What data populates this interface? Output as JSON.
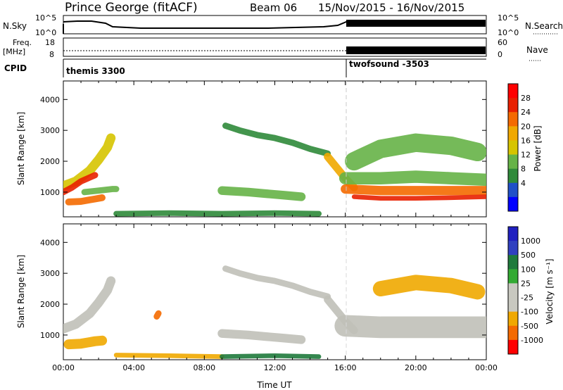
{
  "header": {
    "station": "Prince George (fitACF)",
    "beam": "Beam 06",
    "date_range": "15/Nov/2015 - 16/Nov/2015"
  },
  "summary_panels": {
    "nsky": {
      "label": "N.Sky",
      "ticks_left": [
        "10^5",
        "10^0"
      ],
      "ticks_right": [
        "10^5",
        "10^0"
      ],
      "right_label": "N.Search"
    },
    "freq": {
      "label_line1": "Freq.",
      "label_line2": "[MHz]",
      "ticks_left": [
        "18",
        "8"
      ],
      "ticks_right": [
        "60",
        "0"
      ],
      "right_label": "Nave"
    },
    "cpid": {
      "label": "CPID",
      "segments": [
        {
          "name": "themis 3300",
          "start_hour": 0
        },
        {
          "name": "twofsound -3503",
          "start_hour": 16
        }
      ]
    }
  },
  "colors": {
    "power_scale": [
      "#0000ff",
      "#2050c8",
      "#2f8a3a",
      "#66b347",
      "#d6c400",
      "#f0a800",
      "#f46a00",
      "#e82000",
      "#ff0000"
    ],
    "velocity_scale": [
      "#ff0000",
      "#f46a00",
      "#f0a800",
      "#c8c8c0",
      "#c8c8c0",
      "#33aa33",
      "#1f7a3c",
      "#3040c0",
      "#2020c0"
    ],
    "ground_scatter": "#c0c0b8"
  },
  "chart_data": [
    {
      "type": "heatmap",
      "title": "Power",
      "xlabel": "",
      "ylabel": "Slant Range [km]",
      "xlim": [
        0,
        24
      ],
      "ylim": [
        200,
        4600
      ],
      "yticks": [
        "4000",
        "3000",
        "2000",
        "1000"
      ],
      "colorbar": {
        "label": "Power [dB]",
        "ticks": [
          "28",
          "24",
          "20",
          "16",
          "12",
          "8",
          "4"
        ]
      },
      "bands": [
        {
          "x": [
            0.0,
            0.7,
            1.5,
            2.0,
            2.5,
            2.7
          ],
          "y": [
            1200,
            1350,
            1700,
            2050,
            2450,
            2750
          ],
          "width_km": 300,
          "value": 15
        },
        {
          "x": [
            0.0,
            0.5,
            1.0,
            1.8
          ],
          "y": [
            1000,
            1150,
            1350,
            1550
          ],
          "width_km": 200,
          "value": 26
        },
        {
          "x": [
            0.3,
            1.0,
            1.8,
            2.2
          ],
          "y": [
            680,
            700,
            780,
            820
          ],
          "width_km": 220,
          "value": 24
        },
        {
          "x": [
            1.2,
            2.0,
            2.8,
            3.0
          ],
          "y": [
            1000,
            1050,
            1100,
            1100
          ],
          "width_km": 200,
          "value": 12
        },
        {
          "x": [
            3.0,
            6.0,
            9.0,
            12.0,
            14.5
          ],
          "y": [
            300,
            320,
            300,
            320,
            300
          ],
          "width_km": 180,
          "value": 10
        },
        {
          "x": [
            9.2,
            10.0,
            11.0,
            12.0,
            13.0,
            14.0,
            15.0
          ],
          "y": [
            3150,
            3000,
            2850,
            2750,
            2600,
            2400,
            2250
          ],
          "width_km": 200,
          "value": 8
        },
        {
          "x": [
            15.0,
            15.5,
            16.0,
            16.5
          ],
          "y": [
            2150,
            1800,
            1450,
            1150
          ],
          "width_km": 250,
          "value": 20
        },
        {
          "x": [
            9.0,
            10.5,
            11.5,
            12.5,
            13.5
          ],
          "y": [
            1050,
            1000,
            950,
            900,
            850
          ],
          "width_km": 280,
          "value": 12
        },
        {
          "x": [
            16.0,
            18.0,
            20.0,
            22.0,
            24.0
          ],
          "y": [
            1450,
            1450,
            1500,
            1450,
            1400
          ],
          "width_km": 400,
          "value": 13
        },
        {
          "x": [
            16.0,
            18.0,
            20.0,
            22.0,
            24.0
          ],
          "y": [
            1100,
            1050,
            1050,
            1050,
            1050
          ],
          "width_km": 300,
          "value": 22
        },
        {
          "x": [
            16.5,
            18.0,
            20.0,
            22.0,
            24.0
          ],
          "y": [
            850,
            800,
            800,
            820,
            850
          ],
          "width_km": 150,
          "value": 28
        },
        {
          "x": [
            16.5,
            18.0,
            20.0,
            22.0,
            23.5
          ],
          "y": [
            2000,
            2400,
            2600,
            2500,
            2300
          ],
          "width_km": 600,
          "value": 11
        }
      ]
    },
    {
      "type": "heatmap",
      "title": "Velocity",
      "xlabel": "Time UT",
      "ylabel": "Slant Range [km]",
      "xlim": [
        0,
        24
      ],
      "ylim": [
        200,
        4600
      ],
      "xticks": [
        "00:00",
        "04:00",
        "08:00",
        "12:00",
        "16:00",
        "20:00",
        "00:00"
      ],
      "yticks": [
        "4000",
        "3000",
        "2000",
        "1000"
      ],
      "colorbar": {
        "label": "Velocity [m s⁻¹]",
        "ticks": [
          "1000",
          "500",
          "100",
          "25",
          "-25",
          "-100",
          "-500",
          "-1000"
        ]
      },
      "bands": [
        {
          "x": [
            0.0,
            0.7,
            1.5,
            2.0,
            2.5,
            2.7
          ],
          "y": [
            1200,
            1350,
            1700,
            2050,
            2450,
            2750
          ],
          "width_km": 300,
          "value": 0
        },
        {
          "x": [
            0.3,
            1.0,
            1.8,
            2.2
          ],
          "y": [
            700,
            720,
            800,
            820
          ],
          "width_km": 320,
          "value": -150
        },
        {
          "x": [
            3.0,
            6.0,
            9.0
          ],
          "y": [
            350,
            330,
            300
          ],
          "width_km": 150,
          "value": -150
        },
        {
          "x": [
            9.0,
            12.0,
            14.5
          ],
          "y": [
            300,
            330,
            300
          ],
          "width_km": 150,
          "value": 150
        },
        {
          "x": [
            9.2,
            10.0,
            11.0,
            12.0,
            13.0,
            14.0,
            15.0
          ],
          "y": [
            3150,
            3000,
            2850,
            2750,
            2600,
            2400,
            2250
          ],
          "width_km": 200,
          "value": 0
        },
        {
          "x": [
            15.0,
            15.5,
            16.0,
            16.5
          ],
          "y": [
            2150,
            1800,
            1450,
            1150
          ],
          "width_km": 250,
          "value": 0
        },
        {
          "x": [
            9.0,
            10.5,
            11.5,
            12.5,
            13.5
          ],
          "y": [
            1050,
            1000,
            950,
            900,
            850
          ],
          "width_km": 280,
          "value": 0
        },
        {
          "x": [
            16.0,
            18.0,
            20.0,
            22.0,
            24.0
          ],
          "y": [
            1300,
            1250,
            1250,
            1250,
            1250
          ],
          "width_km": 700,
          "value": 0
        },
        {
          "x": [
            18.0,
            20.0,
            22.0,
            23.5
          ],
          "y": [
            2500,
            2700,
            2600,
            2400
          ],
          "width_km": 500,
          "value": -200
        },
        {
          "x": [
            5.3,
            5.4
          ],
          "y": [
            1600,
            1700
          ],
          "width_km": 200,
          "value": -800
        }
      ]
    }
  ]
}
